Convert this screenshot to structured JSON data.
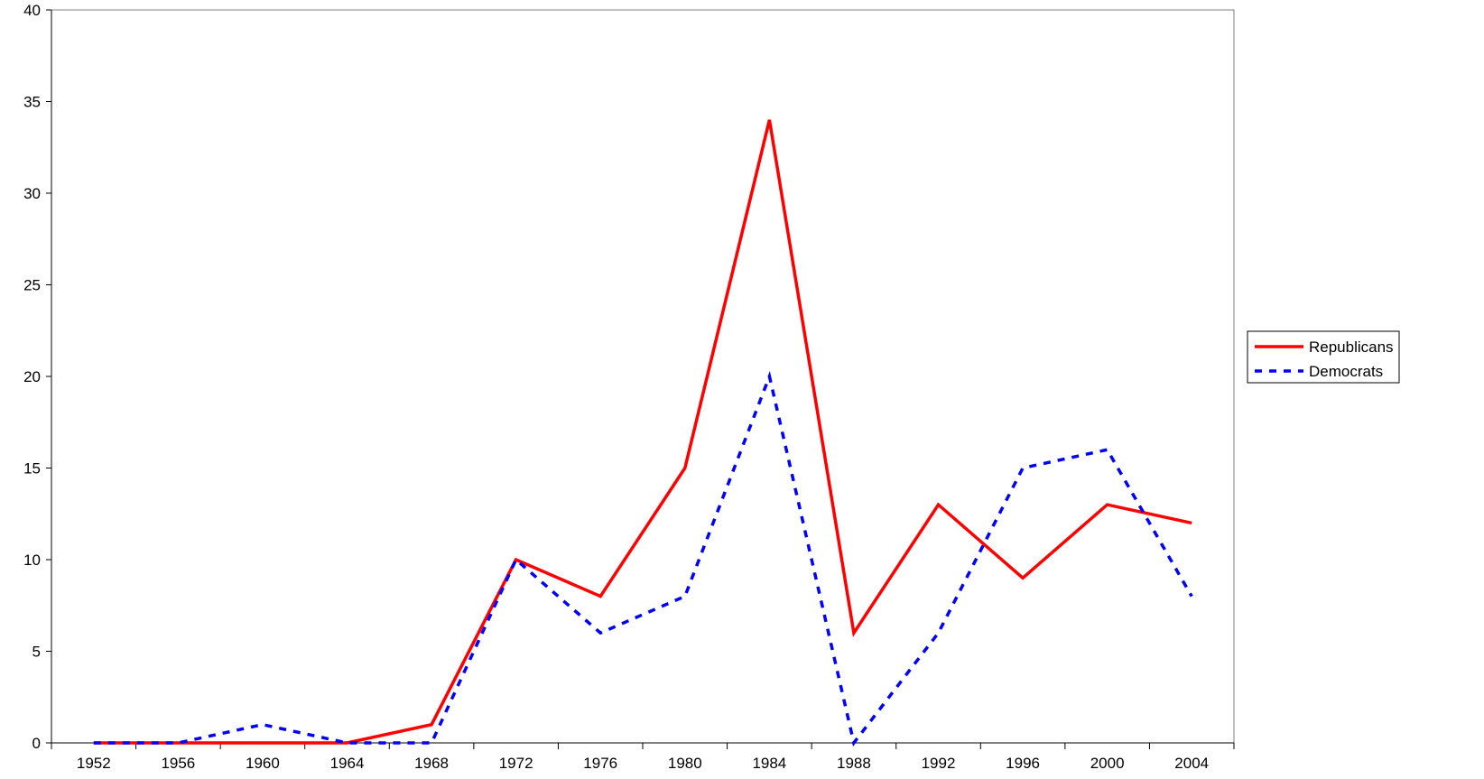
{
  "chart_data": {
    "type": "line",
    "title": "",
    "xlabel": "",
    "ylabel": "",
    "categories": [
      "1952",
      "1956",
      "1960",
      "1964",
      "1968",
      "1972",
      "1976",
      "1980",
      "1984",
      "1988",
      "1992",
      "1996",
      "2000",
      "2004"
    ],
    "ylim": [
      0,
      40
    ],
    "yticks": [
      0,
      5,
      10,
      15,
      20,
      25,
      30,
      35,
      40
    ],
    "grid": false,
    "legend_position": "right",
    "series": [
      {
        "name": "Republicans",
        "color": "#ff0000",
        "line_style": "solid",
        "values": [
          0,
          0,
          0,
          0,
          1,
          10,
          8,
          15,
          34,
          6,
          13,
          9,
          13,
          12
        ]
      },
      {
        "name": "Democrats",
        "color": "#0000ff",
        "line_style": "dashed",
        "values": [
          0,
          0,
          1,
          0,
          0,
          10,
          6,
          8,
          20,
          0,
          6,
          15,
          16,
          8
        ]
      }
    ]
  }
}
